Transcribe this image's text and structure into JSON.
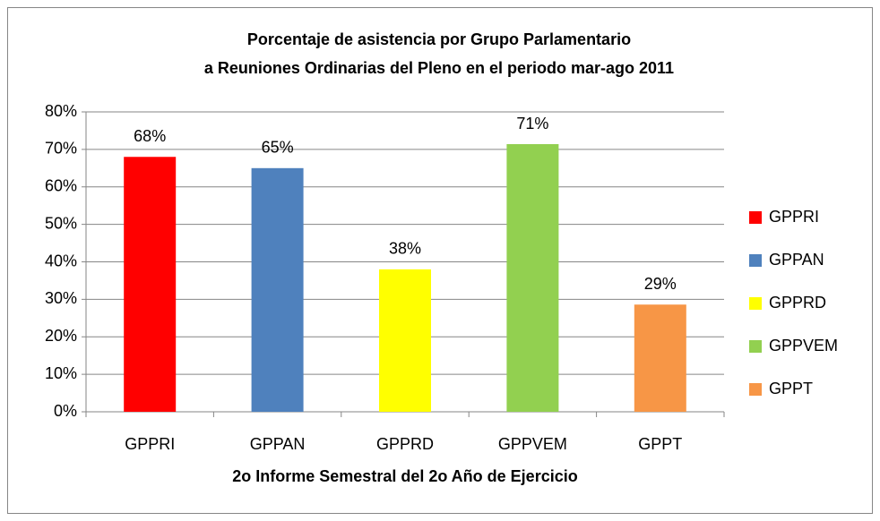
{
  "chart_data": {
    "type": "bar",
    "title": [
      "Porcentaje de asistencia por Grupo Parlamentario",
      "a Reuniones Ordinarias del Pleno en el periodo mar-ago 2011"
    ],
    "x_label": "2o Informe Semestral del 2o Año de Ejercicio",
    "categories": [
      "GPPRI",
      "GPPAN",
      "GPPRD",
      "GPPVEM",
      "GPPT"
    ],
    "values": [
      68,
      65,
      38,
      71.4,
      28.6
    ],
    "value_labels": [
      "68%",
      "65%",
      "38%",
      "71%",
      "29%"
    ],
    "colors": [
      "#ff0000",
      "#4f81bd",
      "#ffff00",
      "#92d050",
      "#f79646"
    ],
    "ylim": [
      0,
      80
    ],
    "yticks": [
      {
        "value": 0,
        "label": "0%"
      },
      {
        "value": 10,
        "label": "10%"
      },
      {
        "value": 20,
        "label": "20%"
      },
      {
        "value": 30,
        "label": "30%"
      },
      {
        "value": 40,
        "label": "40%"
      },
      {
        "value": 50,
        "label": "50%"
      },
      {
        "value": 60,
        "label": "60%"
      },
      {
        "value": 70,
        "label": "70%"
      },
      {
        "value": 80,
        "label": "80%"
      }
    ],
    "grid": true,
    "legend": "right"
  }
}
